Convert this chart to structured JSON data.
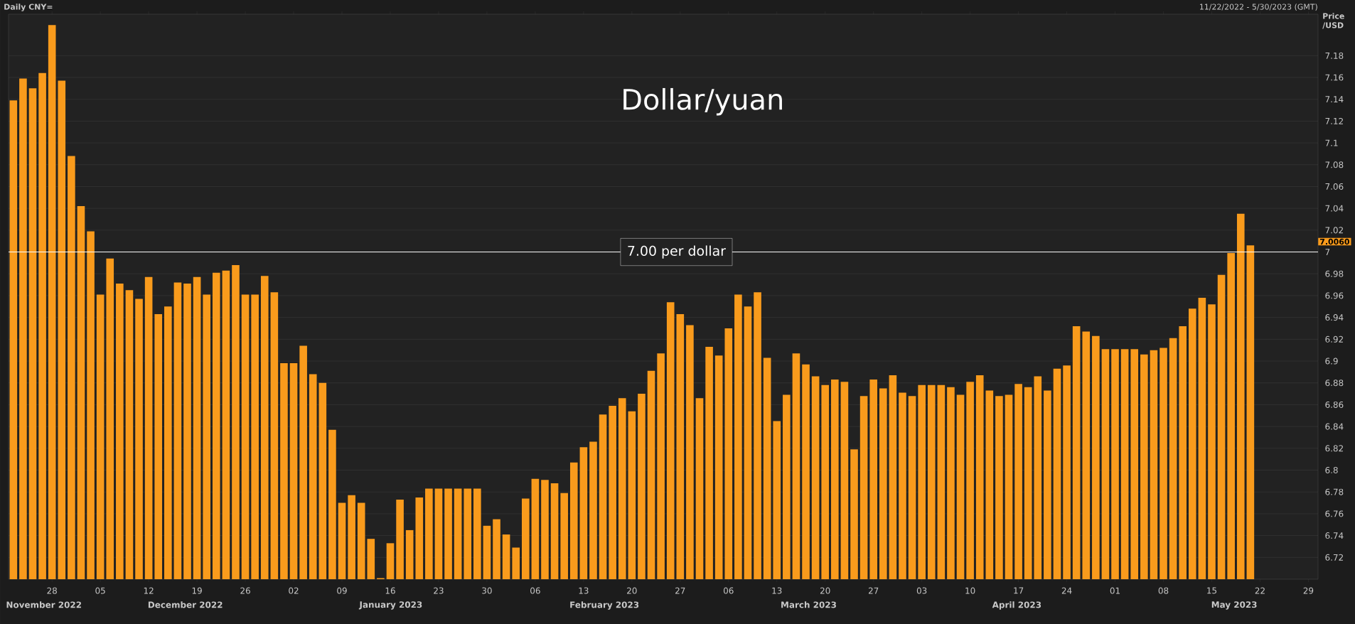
{
  "chart_data": {
    "type": "bar",
    "title": "Dollar/yuan",
    "ylabel": "Price /USD",
    "color": "#f99b1c",
    "grid": "y",
    "ylim": [
      6.7,
      7.218
    ],
    "yticks": [
      6.72,
      6.74,
      6.76,
      6.78,
      6.8,
      6.82,
      6.84,
      6.86,
      6.88,
      6.9,
      6.92,
      6.94,
      6.96,
      6.98,
      7,
      7.02,
      7.04,
      7.06,
      7.08,
      7.1,
      7.12,
      7.14,
      7.16,
      7.18
    ],
    "categories": [
      null,
      null,
      null,
      null,
      "28",
      null,
      null,
      null,
      null,
      "05",
      null,
      null,
      null,
      null,
      "12",
      null,
      null,
      null,
      null,
      "19",
      null,
      null,
      null,
      null,
      "26",
      null,
      null,
      null,
      null,
      "02",
      null,
      null,
      null,
      null,
      "09",
      null,
      null,
      null,
      null,
      "16",
      null,
      null,
      null,
      null,
      "23",
      null,
      null,
      null,
      null,
      "30",
      null,
      null,
      null,
      null,
      "06",
      null,
      null,
      null,
      null,
      "13",
      null,
      null,
      null,
      null,
      "20",
      null,
      null,
      null,
      null,
      "27",
      null,
      null,
      null,
      null,
      "06",
      null,
      null,
      null,
      null,
      "13",
      null,
      null,
      null,
      null,
      "20",
      null,
      null,
      null,
      null,
      "27",
      null,
      null,
      null,
      null,
      "03",
      null,
      null,
      null,
      null,
      "10",
      null,
      null,
      null,
      null,
      "17",
      null,
      null,
      null,
      null,
      "24",
      null,
      null,
      null,
      null,
      "01",
      null,
      null,
      null,
      null,
      "08",
      null,
      null,
      null,
      null,
      "15",
      null,
      null,
      null,
      null,
      "22",
      null,
      null,
      null,
      null,
      "29",
      null
    ],
    "values": [
      7.139,
      7.159,
      7.15,
      7.164,
      7.208,
      7.157,
      7.088,
      7.042,
      7.019,
      6.961,
      6.994,
      6.971,
      6.965,
      6.957,
      6.977,
      6.943,
      6.95,
      6.972,
      6.971,
      6.977,
      6.961,
      6.981,
      6.983,
      6.988,
      6.961,
      6.961,
      6.978,
      6.963,
      6.898,
      6.898,
      6.914,
      6.888,
      6.88,
      6.837,
      6.77,
      6.777,
      6.77,
      6.737,
      6.701,
      6.733,
      6.773,
      6.745,
      6.775,
      6.783,
      6.783,
      6.783,
      6.783,
      6.783,
      6.783,
      6.749,
      6.755,
      6.741,
      6.729,
      6.774,
      6.792,
      6.791,
      6.788,
      6.779,
      6.807,
      6.821,
      6.826,
      6.851,
      6.859,
      6.866,
      6.854,
      6.87,
      6.891,
      6.907,
      6.954,
      6.943,
      6.933,
      6.866,
      6.913,
      6.905,
      6.93,
      6.961,
      6.95,
      6.963,
      6.903,
      6.845,
      6.869,
      6.907,
      6.897,
      6.886,
      6.878,
      6.883,
      6.881,
      6.819,
      6.868,
      6.883,
      6.875,
      6.887,
      6.871,
      6.868,
      6.878,
      6.878,
      6.878,
      6.876,
      6.869,
      6.881,
      6.887,
      6.873,
      6.868,
      6.869,
      6.879,
      6.876,
      6.886,
      6.873,
      6.893,
      6.896,
      6.932,
      6.927,
      6.923,
      6.911,
      6.911,
      6.911,
      6.911,
      6.906,
      6.91,
      6.912,
      6.921,
      6.932,
      6.948,
      6.958,
      6.952,
      6.979,
      6.999,
      7.035,
      7.006,
      null,
      null,
      null,
      null,
      null,
      null,
      null
    ],
    "ref_lines": [
      {
        "axis": "y",
        "value": 7.0,
        "label": "7.00 per dollar",
        "color": "#ffffff"
      }
    ],
    "annotations": [
      "Daily CNY=",
      "11/22/2022 - 5/30/2023 (GMT)",
      "November 2022",
      "December 2022",
      "January 2023",
      "February 2023",
      "March 2023",
      "April 2023",
      "May 2023",
      "7.0060"
    ]
  }
}
